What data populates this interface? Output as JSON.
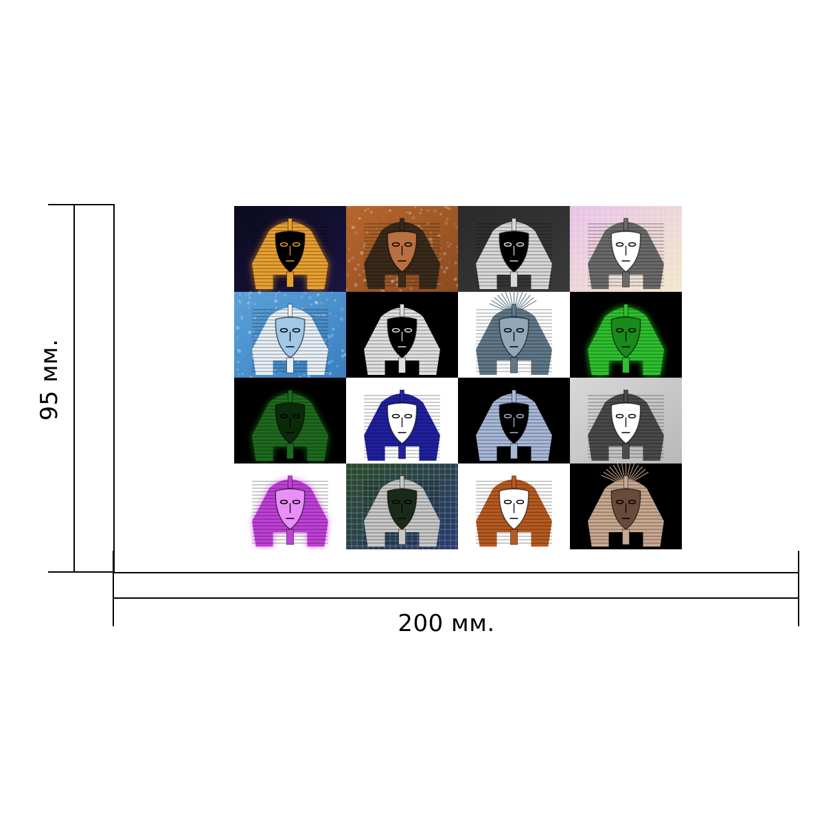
{
  "dimensions": {
    "width_label": "200 мм.",
    "height_label": "95 мм."
  },
  "artwork": {
    "rows": 4,
    "columns": 4,
    "tiles": [
      {
        "bg": "#0b0b1e",
        "bg2": "#1a1440",
        "figure": "#e8a030",
        "face": "#000000",
        "glow": "#ff9a20",
        "texture": "glow"
      },
      {
        "bg": "#b8672c",
        "bg2": "#8a4a20",
        "figure": "#3a2a1a",
        "face": "#b87040",
        "glow": "",
        "texture": "speckle"
      },
      {
        "bg": "#2a2a2a",
        "bg2": "#3a3a3a",
        "figure": "#d8d8d8",
        "face": "#000000",
        "glow": "",
        "texture": "plain"
      },
      {
        "bg": "#e8c0e8",
        "bg2": "#f0e8c8",
        "figure": "#6a6a6a",
        "face": "#ffffff",
        "glow": "",
        "texture": "grid"
      },
      {
        "bg": "#5aa0d8",
        "bg2": "#3a80c0",
        "figure": "#e8f0f8",
        "face": "#a0c8e8",
        "glow": "",
        "texture": "speckle"
      },
      {
        "bg": "#000000",
        "bg2": "#000000",
        "figure": "#e0e0e0",
        "face": "#000000",
        "glow": "",
        "texture": "plain"
      },
      {
        "bg": "#ffffff",
        "bg2": "#ffffff",
        "figure": "#607888",
        "face": "#90a8b8",
        "glow": "",
        "texture": "burst"
      },
      {
        "bg": "#000000",
        "bg2": "#000000",
        "figure": "#2ec02e",
        "face": "#1a8a1a",
        "glow": "#30ff30",
        "texture": "glow"
      },
      {
        "bg": "#000000",
        "bg2": "#000000",
        "figure": "#1e6a1e",
        "face": "#0a2a0a",
        "glow": "#1a8a1a",
        "texture": "glow"
      },
      {
        "bg": "#ffffff",
        "bg2": "#ffffff",
        "figure": "#2020a0",
        "face": "#ffffff",
        "glow": "",
        "texture": "plain"
      },
      {
        "bg": "#000000",
        "bg2": "#000000",
        "figure": "#a8b8d8",
        "face": "#000000",
        "glow": "",
        "texture": "plain"
      },
      {
        "bg": "#d8d8d8",
        "bg2": "#b8b8b8",
        "figure": "#4a4a4a",
        "face": "#ffffff",
        "glow": "",
        "texture": "plain"
      },
      {
        "bg": "#ffffff",
        "bg2": "#ffffff",
        "figure": "#c040d8",
        "face": "#e890f8",
        "glow": "#e060ff",
        "texture": "glow"
      },
      {
        "bg": "#2a4a2a",
        "bg2": "#283870",
        "figure": "#c8c8c8",
        "face": "#1a2a1a",
        "glow": "",
        "texture": "grid"
      },
      {
        "bg": "#ffffff",
        "bg2": "#ffffff",
        "figure": "#b85a20",
        "face": "#ffffff",
        "glow": "",
        "texture": "plain"
      },
      {
        "bg": "#000000",
        "bg2": "#000000",
        "figure": "#c8a890",
        "face": "#6a4a3a",
        "glow": "",
        "texture": "burst"
      }
    ]
  }
}
